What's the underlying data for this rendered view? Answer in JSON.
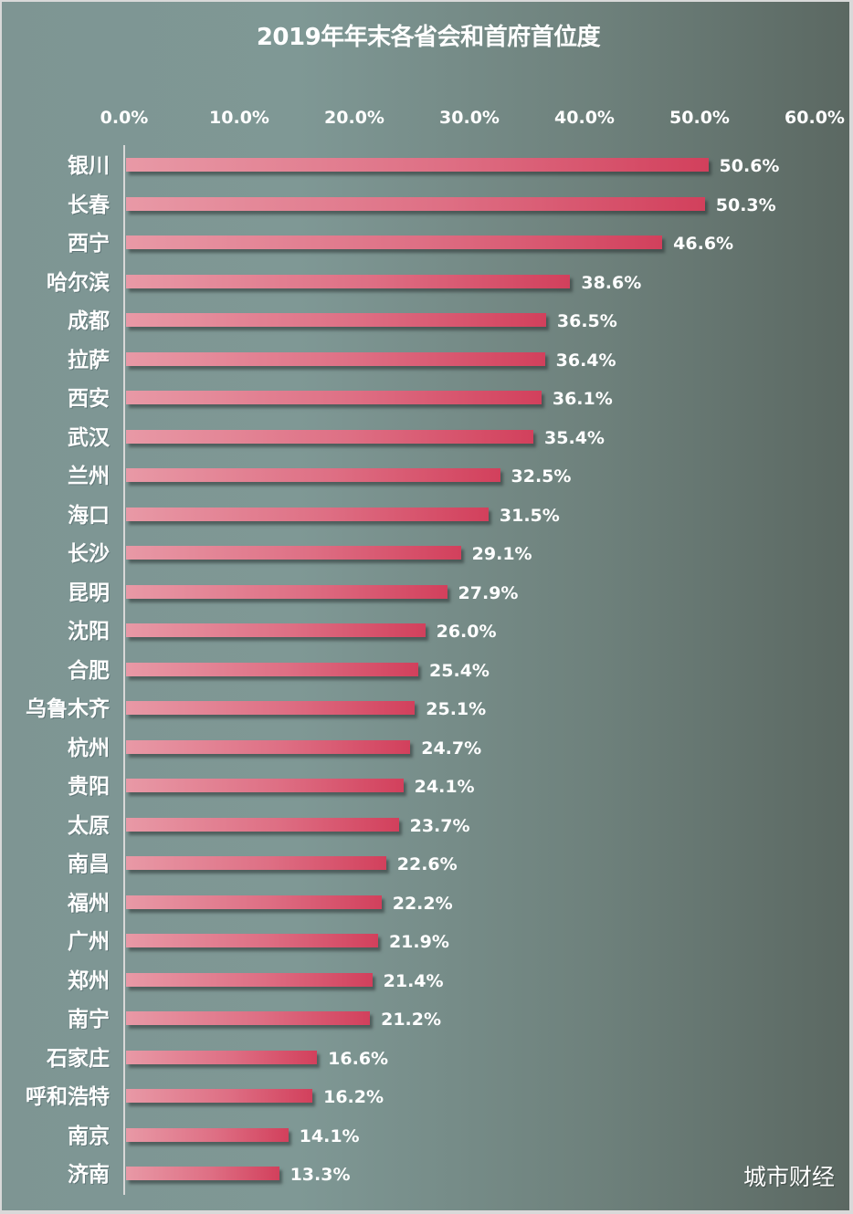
{
  "chart_data": {
    "type": "bar",
    "orientation": "horizontal",
    "title": "2019年年末各省会和首府首位度",
    "xlabel": "",
    "ylabel": "",
    "xlim": [
      0,
      60
    ],
    "x_ticks": [
      "0.0%",
      "10.0%",
      "20.0%",
      "30.0%",
      "40.0%",
      "50.0%",
      "60.0%"
    ],
    "x_axis_position": "top",
    "grid": false,
    "legend": null,
    "categories": [
      "银川",
      "长春",
      "西宁",
      "哈尔滨",
      "成都",
      "拉萨",
      "西安",
      "武汉",
      "兰州",
      "海口",
      "长沙",
      "昆明",
      "沈阳",
      "合肥",
      "乌鲁木齐",
      "杭州",
      "贵阳",
      "太原",
      "南昌",
      "福州",
      "广州",
      "郑州",
      "南宁",
      "石家庄",
      "呼和浩特",
      "南京",
      "济南"
    ],
    "values": [
      50.6,
      50.3,
      46.6,
      38.6,
      36.5,
      36.4,
      36.1,
      35.4,
      32.5,
      31.5,
      29.1,
      27.9,
      26.0,
      25.4,
      25.1,
      24.7,
      24.1,
      23.7,
      22.6,
      22.2,
      21.9,
      21.4,
      21.2,
      16.6,
      16.2,
      14.1,
      13.3
    ],
    "value_labels": [
      "50.6%",
      "50.3%",
      "46.6%",
      "38.6%",
      "36.5%",
      "36.4%",
      "36.1%",
      "35.4%",
      "32.5%",
      "31.5%",
      "29.1%",
      "27.9%",
      "26.0%",
      "25.4%",
      "25.1%",
      "24.7%",
      "24.1%",
      "23.7%",
      "22.6%",
      "22.2%",
      "21.9%",
      "21.4%",
      "21.2%",
      "16.6%",
      "16.2%",
      "14.1%",
      "13.3%"
    ],
    "unit": "%"
  },
  "colors": {
    "bar_start": "#e899a6",
    "bar_end": "#d2405c",
    "background_left": "#7f9895",
    "background_right": "#5b6862",
    "text": "#ffffff"
  },
  "watermark": "城市财经"
}
